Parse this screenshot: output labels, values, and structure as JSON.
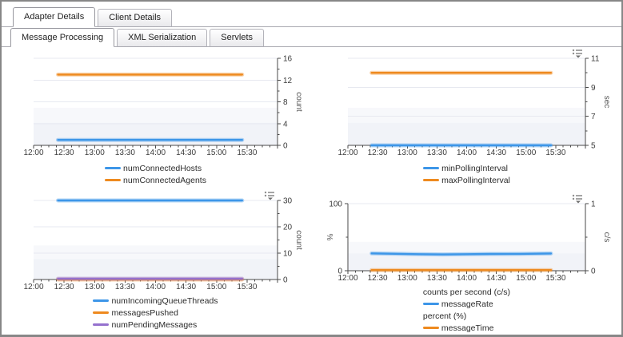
{
  "tabs": {
    "row1": [
      {
        "label": "Adapter Details",
        "active": true
      },
      {
        "label": "Client Details",
        "active": false
      }
    ],
    "row2": [
      {
        "label": "Message Processing",
        "active": true
      },
      {
        "label": "XML Serialization",
        "active": false
      },
      {
        "label": "Servlets",
        "active": false
      }
    ]
  },
  "colors": {
    "blue": "#3d96e8",
    "orange": "#ee8a1f",
    "purple": "#9571ce",
    "axis": "#4a4a4a",
    "grid": "#e7e9f0",
    "band_light": "#f7f8fb",
    "band_dark": "#f1f3f8"
  },
  "icons": {
    "chart_menu": "list-dropdown-icon"
  },
  "chart_data": [
    {
      "type": "line",
      "position": "top-left",
      "x_axis": {
        "tick_labels": [
          "12:00",
          "12:30",
          "13:00",
          "13:30",
          "14:00",
          "14:30",
          "15:00",
          "15:30"
        ],
        "min_hour": 12,
        "max_hour": 16,
        "major_step_h": 0.5,
        "minor_step_h": 0.125
      },
      "y_right": {
        "title": "count",
        "min": 0,
        "max": 16,
        "major_ticks": [
          0,
          4,
          8,
          12,
          16
        ],
        "minor_ticks": [
          2,
          6,
          10,
          14
        ]
      },
      "series": [
        {
          "name": "numConnectedHosts",
          "color": "#3d96e8",
          "axis": "right",
          "points": [
            [
              12.4,
              1
            ],
            [
              15.42,
              1
            ]
          ]
        },
        {
          "name": "numConnectedAgents",
          "color": "#ee8a1f",
          "axis": "right",
          "points": [
            [
              12.4,
              13
            ],
            [
              15.42,
              13
            ]
          ]
        }
      ],
      "legend_groups": [
        {
          "title": null,
          "items": [
            "numConnectedHosts",
            "numConnectedAgents"
          ]
        }
      ],
      "menu_icon": false
    },
    {
      "type": "line",
      "position": "top-right",
      "x_axis": {
        "tick_labels": [
          "12:00",
          "12:30",
          "13:00",
          "13:30",
          "14:00",
          "14:30",
          "15:00",
          "15:30"
        ],
        "min_hour": 12,
        "max_hour": 16,
        "major_step_h": 0.5,
        "minor_step_h": 0.125
      },
      "y_right": {
        "title": "sec",
        "min": 5,
        "max": 11,
        "major_ticks": [
          5,
          7,
          9,
          11
        ],
        "minor_ticks": [
          6,
          8,
          10
        ]
      },
      "series": [
        {
          "name": "minPollingInterval",
          "color": "#3d96e8",
          "axis": "right",
          "points": [
            [
              12.4,
              5
            ],
            [
              15.42,
              5
            ]
          ]
        },
        {
          "name": "maxPollingInterval",
          "color": "#ee8a1f",
          "axis": "right",
          "points": [
            [
              12.4,
              10
            ],
            [
              15.42,
              10
            ]
          ]
        }
      ],
      "legend_groups": [
        {
          "title": null,
          "items": [
            "minPollingInterval",
            "maxPollingInterval"
          ]
        }
      ],
      "menu_icon": true
    },
    {
      "type": "line",
      "position": "bottom-left",
      "x_axis": {
        "tick_labels": [
          "12:00",
          "12:30",
          "13:00",
          "13:30",
          "14:00",
          "14:30",
          "15:00",
          "15:30"
        ],
        "min_hour": 12,
        "max_hour": 16,
        "major_step_h": 0.5,
        "minor_step_h": 0.125
      },
      "y_right": {
        "title": "count",
        "min": 0,
        "max": 30,
        "major_ticks": [
          0,
          10,
          20,
          30
        ],
        "minor_ticks": [
          5,
          15,
          25
        ]
      },
      "series": [
        {
          "name": "numIncomingQueueThreads",
          "color": "#3d96e8",
          "axis": "right",
          "points": [
            [
              12.4,
              30
            ],
            [
              15.42,
              30
            ]
          ]
        },
        {
          "name": "messagesPushed",
          "color": "#ee8a1f",
          "axis": "right",
          "points": [
            [
              12.4,
              0
            ],
            [
              15.42,
              0
            ]
          ]
        },
        {
          "name": "numPendingMessages",
          "color": "#9571ce",
          "axis": "right",
          "points": [
            [
              12.4,
              0.3
            ],
            [
              15.42,
              0.3
            ]
          ]
        }
      ],
      "legend_groups": [
        {
          "title": null,
          "items": [
            "numIncomingQueueThreads",
            "messagesPushed",
            "numPendingMessages"
          ]
        }
      ],
      "menu_icon": true
    },
    {
      "type": "line",
      "position": "bottom-right",
      "x_axis": {
        "tick_labels": [
          "12:00",
          "12:30",
          "13:00",
          "13:30",
          "14:00",
          "14:30",
          "15:00",
          "15:30"
        ],
        "min_hour": 12,
        "max_hour": 16,
        "major_step_h": 0.5,
        "minor_step_h": 0.125
      },
      "y_left": {
        "title": "%",
        "min": 0,
        "max": 100,
        "major_ticks": [
          0,
          100
        ],
        "minor_ticks": [
          50
        ]
      },
      "y_right": {
        "title": "c/s",
        "min": 0,
        "max": 1,
        "major_ticks": [
          0,
          1
        ],
        "minor_ticks": [
          0.5
        ]
      },
      "series": [
        {
          "name": "messageRate",
          "color": "#3d96e8",
          "axis": "right",
          "points": [
            [
              12.4,
              0.258
            ],
            [
              12.8,
              0.252
            ],
            [
              13.2,
              0.247
            ],
            [
              13.6,
              0.243
            ],
            [
              14.0,
              0.246
            ],
            [
              14.4,
              0.25
            ],
            [
              14.9,
              0.251
            ],
            [
              15.42,
              0.257
            ]
          ]
        },
        {
          "name": "messageTime",
          "color": "#ee8a1f",
          "axis": "left",
          "points": [
            [
              12.4,
              1
            ],
            [
              15.42,
              1
            ]
          ]
        }
      ],
      "legend_groups": [
        {
          "title": "counts per second (c/s)",
          "items": [
            "messageRate"
          ]
        },
        {
          "title": "percent (%)",
          "items": [
            "messageTime"
          ]
        }
      ],
      "menu_icon": true
    }
  ]
}
